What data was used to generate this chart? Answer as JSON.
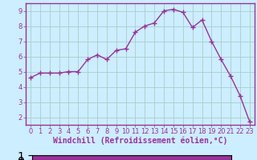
{
  "x": [
    0,
    1,
    2,
    3,
    4,
    5,
    6,
    7,
    8,
    9,
    10,
    11,
    12,
    13,
    14,
    15,
    16,
    17,
    18,
    19,
    20,
    21,
    22,
    23
  ],
  "y": [
    4.6,
    4.9,
    4.9,
    4.9,
    5.0,
    5.0,
    5.8,
    6.1,
    5.8,
    6.4,
    6.5,
    7.6,
    8.0,
    8.2,
    9.0,
    9.1,
    8.9,
    7.9,
    8.4,
    7.0,
    5.8,
    4.7,
    3.4,
    1.7
  ],
  "line_color": "#993399",
  "marker": "+",
  "marker_size": 4,
  "marker_linewidth": 1.0,
  "linewidth": 1.0,
  "xlim": [
    -0.5,
    23.5
  ],
  "ylim": [
    1.5,
    9.5
  ],
  "yticks": [
    2,
    3,
    4,
    5,
    6,
    7,
    8,
    9
  ],
  "xticks": [
    0,
    1,
    2,
    3,
    4,
    5,
    6,
    7,
    8,
    9,
    10,
    11,
    12,
    13,
    14,
    15,
    16,
    17,
    18,
    19,
    20,
    21,
    22,
    23
  ],
  "xlabel": "Windchill (Refroidissement éolien,°C)",
  "xlabel_fontsize": 7,
  "tick_fontsize": 6,
  "background_color": "#cceeff",
  "grid_color": "#aacccc",
  "spine_color": "#993399",
  "tick_color": "#993399",
  "bottom_bar_color": "#993399"
}
